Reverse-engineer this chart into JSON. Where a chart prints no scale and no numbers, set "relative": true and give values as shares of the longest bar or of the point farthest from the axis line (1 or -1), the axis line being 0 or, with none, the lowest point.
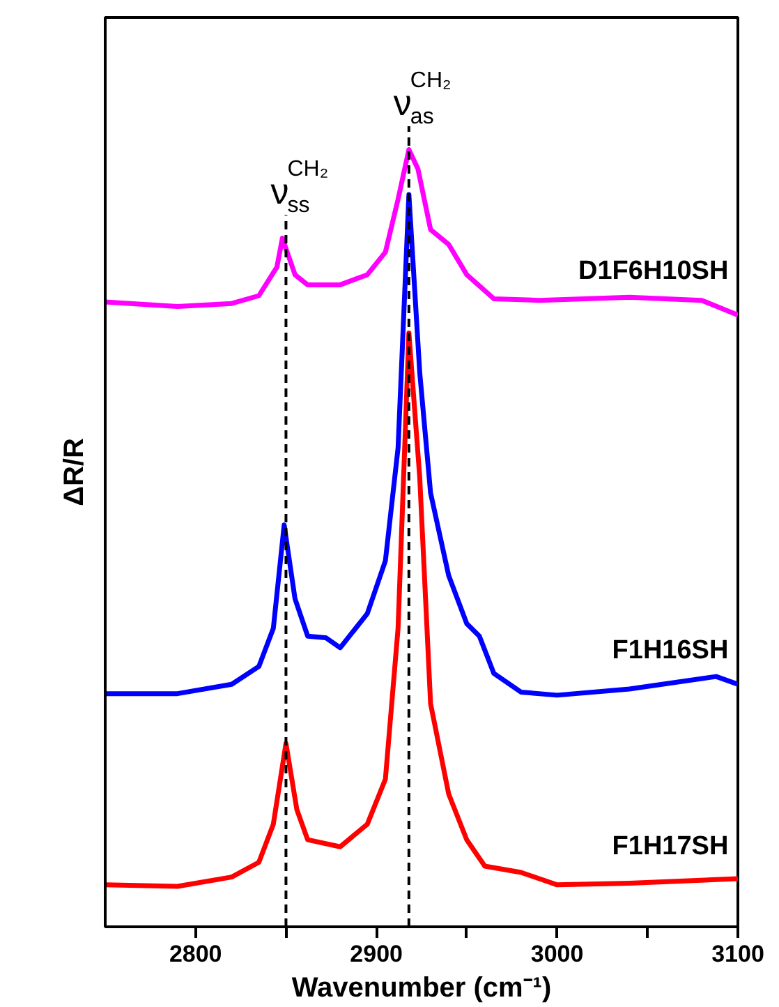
{
  "chart_data": {
    "type": "line",
    "relative": true,
    "xlabel": "Wavenumber (cm⁻¹)",
    "ylabel": "ΔR/R",
    "legend": false,
    "grid": false,
    "xlim": [
      2750,
      3100
    ],
    "xticks": [
      2800,
      {
        "value": 2850,
        "label": null
      },
      2900,
      {
        "value": 2950,
        "label": null
      },
      3000,
      {
        "value": 3050,
        "label": null
      },
      3100
    ],
    "ref_lines": [
      {
        "axis": "x",
        "value": 2850,
        "label": "ν$^{CH₂}$$_{ss}$",
        "line_style": "dashed",
        "color": "#000000"
      },
      {
        "axis": "x",
        "value": 2918,
        "label": "ν$^{CH₂}$$_{as}$",
        "line_style": "dashed",
        "color": "#000000"
      }
    ],
    "series": [
      {
        "name": "D1F6H10SH",
        "color": "#ff00ff",
        "x": [
          2750,
          2790,
          2820,
          2835,
          2845,
          2848,
          2855,
          2862,
          2880,
          2895,
          2905,
          2912,
          2918,
          2923,
          2930,
          2940,
          2950,
          2965,
          2990,
          3040,
          3080,
          3100
        ],
        "values": [
          0.804,
          0.798,
          0.802,
          0.812,
          0.849,
          0.886,
          0.839,
          0.826,
          0.826,
          0.839,
          0.868,
          0.936,
          1.0,
          0.975,
          0.897,
          0.878,
          0.839,
          0.808,
          0.806,
          0.81,
          0.806,
          0.787
        ]
      },
      {
        "name": "F1H16SH",
        "color": "#0000ff",
        "x": [
          2750,
          2790,
          2820,
          2835,
          2843,
          2849,
          2855,
          2862,
          2872,
          2880,
          2895,
          2905,
          2912,
          2918,
          2924,
          2930,
          2940,
          2950,
          2957,
          2965,
          2980,
          3000,
          3040,
          3088,
          3100
        ],
        "values": [
          0.3,
          0.3,
          0.312,
          0.335,
          0.384,
          0.517,
          0.422,
          0.374,
          0.372,
          0.359,
          0.403,
          0.471,
          0.616,
          0.942,
          0.713,
          0.558,
          0.452,
          0.39,
          0.374,
          0.326,
          0.302,
          0.298,
          0.306,
          0.322,
          0.312
        ]
      },
      {
        "name": "F1H17SH",
        "color": "#ff0000",
        "x": [
          2750,
          2790,
          2820,
          2835,
          2843,
          2850,
          2856,
          2862,
          2880,
          2895,
          2905,
          2912,
          2918,
          2924,
          2930,
          2940,
          2950,
          2960,
          2980,
          3000,
          3040,
          3100
        ],
        "values": [
          0.054,
          0.052,
          0.064,
          0.083,
          0.132,
          0.236,
          0.151,
          0.112,
          0.103,
          0.132,
          0.19,
          0.384,
          0.764,
          0.578,
          0.287,
          0.171,
          0.112,
          0.078,
          0.07,
          0.054,
          0.056,
          0.062
        ]
      }
    ]
  }
}
